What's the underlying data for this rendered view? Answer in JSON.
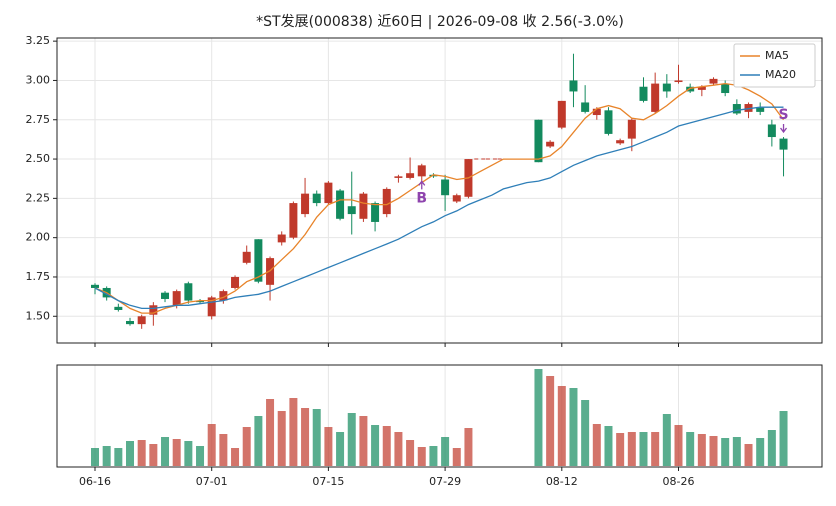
{
  "chart_data": {
    "type": "candlestick",
    "title": "*ST发展(000838) 近60日 | 2026-09-08 收 2.56(-3.0%)",
    "categories": [
      "06-16",
      null,
      null,
      null,
      null,
      null,
      null,
      null,
      null,
      null,
      "07-01",
      null,
      null,
      null,
      null,
      null,
      null,
      null,
      null,
      null,
      "07-15",
      null,
      null,
      null,
      null,
      null,
      null,
      null,
      null,
      null,
      "07-29",
      null,
      null,
      null,
      null,
      null,
      null,
      null,
      null,
      null,
      "08-12",
      null,
      null,
      null,
      null,
      null,
      null,
      null,
      null,
      null,
      "08-26",
      null,
      null,
      null,
      null,
      null,
      null,
      null,
      null,
      null
    ],
    "ohlc": {
      "open": [
        1.7,
        1.68,
        1.56,
        1.47,
        1.45,
        1.51,
        1.65,
        1.57,
        1.71,
        1.6,
        1.5,
        1.6,
        1.68,
        1.84,
        1.99,
        1.7,
        1.97,
        2.0,
        2.15,
        2.28,
        2.22,
        2.3,
        2.2,
        2.12,
        2.22,
        2.15,
        2.38,
        2.38,
        2.39,
        2.4,
        2.37,
        2.23,
        2.26,
        null,
        null,
        null,
        null,
        null,
        2.75,
        2.58,
        2.7,
        3.0,
        2.86,
        2.78,
        2.81,
        2.6,
        2.63,
        2.96,
        2.8,
        2.98,
        2.99,
        2.96,
        2.94,
        2.98,
        2.98,
        2.85,
        2.8,
        2.83,
        2.72,
        2.63
      ],
      "high": [
        1.71,
        1.69,
        1.58,
        1.49,
        1.51,
        1.59,
        1.66,
        1.67,
        1.72,
        1.61,
        1.63,
        1.67,
        1.76,
        1.95,
        1.99,
        1.88,
        2.04,
        2.23,
        2.38,
        2.3,
        2.36,
        2.31,
        2.42,
        2.29,
        2.23,
        2.32,
        2.4,
        2.51,
        2.47,
        2.41,
        2.4,
        2.28,
        2.5,
        null,
        null,
        null,
        null,
        null,
        2.75,
        2.62,
        2.87,
        3.17,
        2.97,
        2.83,
        2.83,
        2.63,
        2.76,
        3.02,
        3.05,
        3.04,
        3.1,
        2.98,
        2.97,
        3.02,
        3.0,
        2.88,
        2.86,
        2.86,
        2.75,
        2.64
      ],
      "low": [
        1.64,
        1.6,
        1.53,
        1.44,
        1.42,
        1.44,
        1.59,
        1.55,
        1.58,
        1.58,
        1.48,
        1.58,
        1.67,
        1.83,
        1.71,
        1.6,
        1.95,
        1.99,
        2.13,
        2.2,
        2.21,
        2.11,
        2.02,
        2.1,
        2.04,
        2.13,
        2.35,
        2.37,
        2.35,
        2.38,
        2.17,
        2.22,
        2.25,
        null,
        null,
        null,
        null,
        null,
        2.48,
        2.57,
        2.69,
        2.83,
        2.79,
        2.75,
        2.65,
        2.59,
        2.55,
        2.86,
        2.79,
        2.89,
        2.98,
        2.92,
        2.9,
        2.97,
        2.9,
        2.78,
        2.76,
        2.78,
        2.58,
        2.39
      ],
      "close": [
        1.68,
        1.62,
        1.54,
        1.45,
        1.5,
        1.57,
        1.61,
        1.66,
        1.6,
        1.59,
        1.62,
        1.66,
        1.75,
        1.91,
        1.72,
        1.87,
        2.02,
        2.22,
        2.28,
        2.22,
        2.35,
        2.12,
        2.15,
        2.28,
        2.1,
        2.31,
        2.39,
        2.41,
        2.46,
        2.39,
        2.27,
        2.27,
        2.5,
        2.5,
        2.5,
        2.5,
        2.5,
        2.5,
        2.48,
        2.61,
        2.87,
        2.93,
        2.8,
        2.82,
        2.66,
        2.62,
        2.75,
        2.87,
        2.98,
        2.93,
        3.0,
        2.93,
        2.96,
        3.01,
        2.92,
        2.79,
        2.85,
        2.8,
        2.64,
        2.56
      ]
    },
    "up_color": "#c0392b",
    "down_color": "#138a5e",
    "volume": [
      18,
      20,
      18,
      25,
      26,
      22,
      29,
      27,
      25,
      20,
      42,
      32,
      18,
      39,
      50,
      67,
      55,
      68,
      58,
      57,
      39,
      34,
      53,
      50,
      41,
      40,
      34,
      26,
      19,
      20,
      29,
      18,
      38,
      null,
      null,
      null,
      null,
      null,
      97,
      90,
      80,
      78,
      66,
      42,
      40,
      33,
      34,
      34,
      34,
      52,
      41,
      34,
      32,
      30,
      28,
      29,
      22,
      28,
      36,
      55
    ],
    "vlim": [
      0,
      100
    ],
    "series": [
      {
        "name": "MA5",
        "color": "#e8842a",
        "values": [
          1.68,
          1.65,
          1.6,
          1.55,
          1.52,
          1.52,
          1.55,
          1.57,
          1.59,
          1.6,
          1.6,
          1.62,
          1.66,
          1.72,
          1.75,
          1.79,
          1.86,
          1.93,
          2.02,
          2.13,
          2.21,
          2.24,
          2.24,
          2.22,
          2.21,
          2.21,
          2.25,
          2.3,
          2.35,
          2.4,
          2.39,
          2.37,
          2.38,
          2.42,
          2.46,
          2.5,
          2.5,
          2.5,
          2.5,
          2.52,
          2.58,
          2.67,
          2.76,
          2.82,
          2.84,
          2.82,
          2.76,
          2.75,
          2.79,
          2.84,
          2.9,
          2.95,
          2.96,
          2.97,
          2.98,
          2.97,
          2.94,
          2.9,
          2.85,
          2.75
        ]
      },
      {
        "name": "MA20",
        "color": "#2f7fb8",
        "values": [
          1.68,
          1.64,
          1.6,
          1.57,
          1.55,
          1.55,
          1.56,
          1.57,
          1.57,
          1.58,
          1.59,
          1.6,
          1.62,
          1.63,
          1.64,
          1.66,
          1.69,
          1.72,
          1.75,
          1.78,
          1.81,
          1.84,
          1.87,
          1.9,
          1.93,
          1.96,
          1.99,
          2.03,
          2.07,
          2.1,
          2.14,
          2.17,
          2.21,
          2.24,
          2.27,
          2.31,
          2.33,
          2.35,
          2.36,
          2.38,
          2.42,
          2.46,
          2.49,
          2.52,
          2.54,
          2.56,
          2.58,
          2.61,
          2.64,
          2.67,
          2.71,
          2.73,
          2.75,
          2.77,
          2.79,
          2.81,
          2.82,
          2.83,
          2.83,
          2.83
        ]
      }
    ],
    "markers": [
      {
        "index": 28,
        "text": "B",
        "price": 2.25,
        "color": "#8e44ad"
      },
      {
        "index": 59,
        "text": "S",
        "price": 2.78,
        "color": "#8e44ad"
      }
    ],
    "ylim": [
      1.33,
      3.27
    ],
    "yticks": [
      {
        "value": 1.5,
        "label": "1.50"
      },
      1.75,
      {
        "value": 2,
        "label": "2.00"
      },
      2.25,
      {
        "value": 2.5,
        "label": "2.50"
      },
      2.75,
      {
        "value": 3,
        "label": "3.00"
      },
      3.25
    ],
    "grid": true,
    "legend": "upper right"
  }
}
